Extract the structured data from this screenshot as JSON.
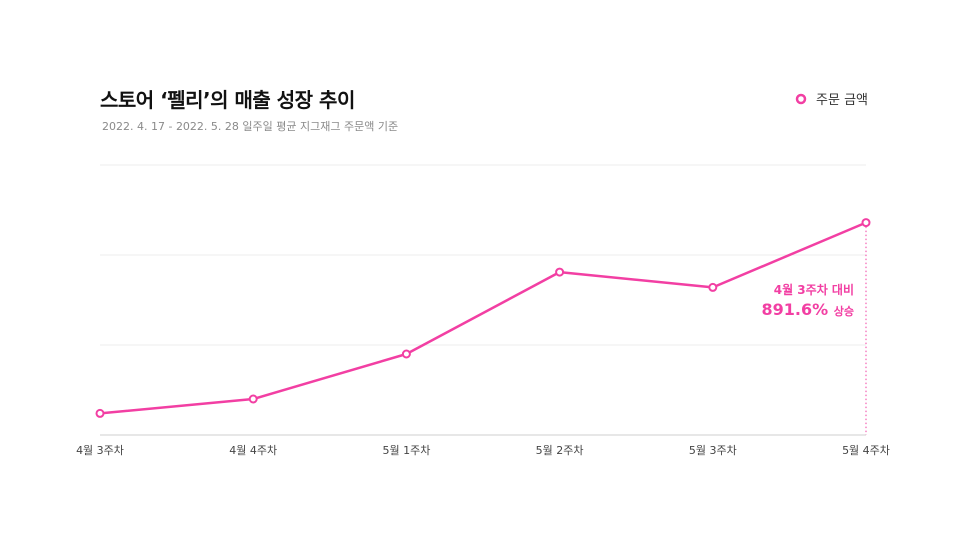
{
  "chart_data": {
    "type": "line",
    "title": "스토어 ‘펠리’의 매출 성장 추이",
    "subtitle": "2022. 4. 17 - 2022. 5. 28 일주일 평균 지그재그 주문액 기준",
    "categories": [
      "4월 3주차",
      "4월 4주차",
      "5월 1주차",
      "5월 2주차",
      "5월 3주차",
      "5월 4주차"
    ],
    "series": [
      {
        "name": "주문 금액",
        "values": [
          0.24,
          0.4,
          0.9,
          1.81,
          1.64,
          2.36
        ]
      }
    ],
    "ylim": [
      0,
      3
    ],
    "grid": true,
    "legend": "top-right",
    "color": "#f23fa3",
    "annotation": {
      "line1": "4월 3주차 대비",
      "value": "891.6%",
      "suffix": "상승"
    }
  }
}
